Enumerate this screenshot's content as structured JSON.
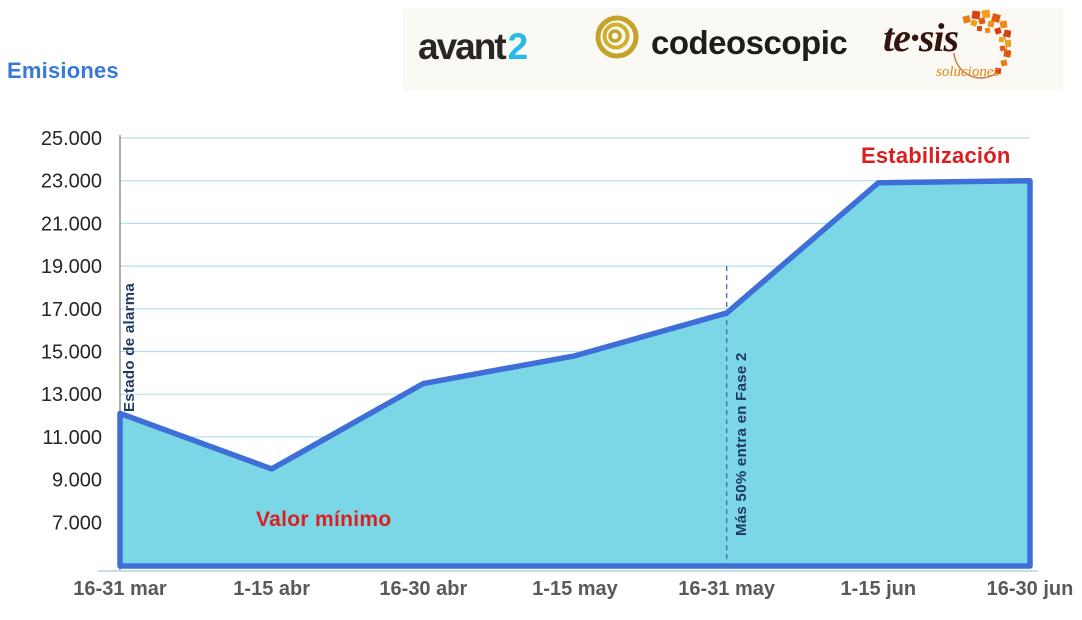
{
  "page_title": "Emisiones",
  "logos": {
    "avant2": {
      "text": "avant",
      "suffix": "2",
      "icon": "avant2-wordmark"
    },
    "codeoscopic": {
      "text": "codeoscopic",
      "icon": "gold-swirl-rings-icon"
    },
    "tesis": {
      "text": "te·sis",
      "subtext": "soluciones",
      "icon": "orange-mosaic-globe-icon"
    }
  },
  "colors": {
    "title_blue": "#3778DC",
    "area_fill": "#7BD6E6",
    "area_stroke": "#3E6FD8",
    "grid": "#B6DFEA",
    "axis_left": "#7A7A7A",
    "axis_bottom": "#C6DCE8",
    "dashed": "#4576C4",
    "tick_text": "#262626",
    "xlabel_text": "#595959",
    "red_annotation": "#DB1F1F",
    "navy_annotation": "#1F3864"
  },
  "chart_data": {
    "type": "area",
    "title": "Emisiones",
    "xlabel": "",
    "ylabel": "",
    "grid": true,
    "categories": [
      "16-31 mar",
      "1-15 abr",
      "16-30 abr",
      "1-15 may",
      "16-31 may",
      "1-15 jun",
      "16-30 jun"
    ],
    "values": [
      12100,
      9500,
      13500,
      14800,
      16800,
      22900,
      23000
    ],
    "ylim": [
      5000,
      25000
    ],
    "ytick_step": 2000,
    "ytick_labels": [
      "25.000",
      "23.000",
      "21.000",
      "19.000",
      "17.000",
      "15.000",
      "13.000",
      "11.000",
      "9.000",
      "7.000"
    ],
    "reference_line": {
      "at_category": "16-31 may",
      "from_value": 19000,
      "style": "dashed",
      "color": "#4576C4"
    },
    "annotations": [
      {
        "id": "estado-alarma",
        "text": "Estado de alarma",
        "orientation": "vertical",
        "near_category": "16-31 mar",
        "color": "#1F3864"
      },
      {
        "id": "fase2",
        "text": "Más 50% entra en Fase 2",
        "orientation": "vertical",
        "near_category": "16-31 may",
        "color": "#1F3864"
      },
      {
        "id": "valor-minimo",
        "text": "Valor mínimo",
        "orientation": "horizontal",
        "near_category": "1-15 abr",
        "color": "#DB1F1F"
      },
      {
        "id": "estabilizacion",
        "text": "Estabilización",
        "orientation": "horizontal",
        "near_category": "1-15 jun",
        "color": "#DB1F1F"
      }
    ]
  }
}
